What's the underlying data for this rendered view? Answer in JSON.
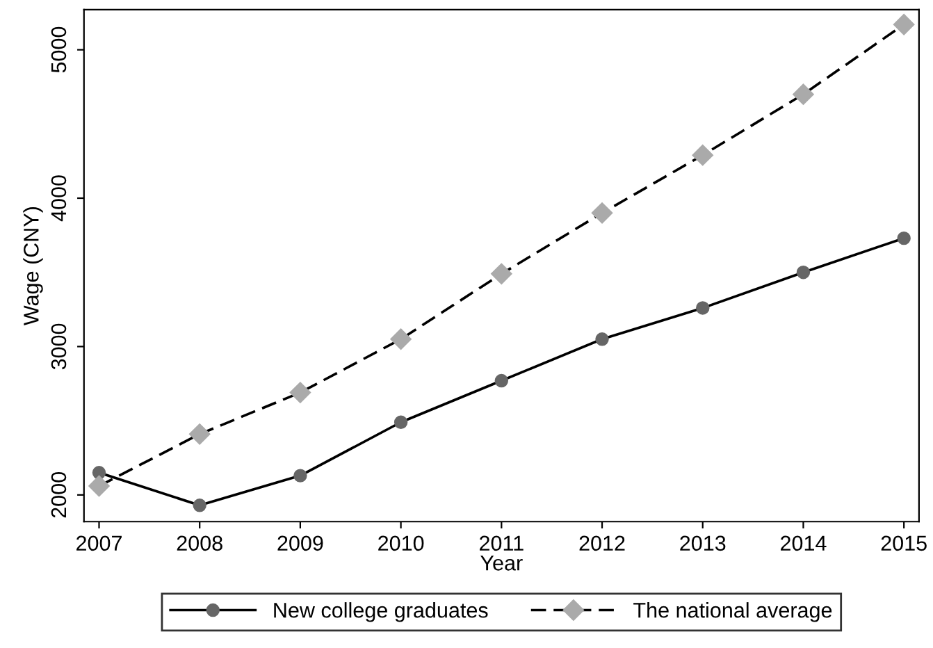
{
  "chart_data": {
    "type": "line",
    "xlabel": "Year",
    "ylabel": "Wage (CNY)",
    "x": [
      2007,
      2008,
      2009,
      2010,
      2011,
      2012,
      2013,
      2014,
      2015
    ],
    "series": [
      {
        "name": "New college graduates",
        "color": "#666666",
        "marker": "circle",
        "line_style": "solid",
        "values": [
          2150,
          1930,
          2130,
          2490,
          2770,
          3050,
          3260,
          3500,
          3730
        ]
      },
      {
        "name": "The national average",
        "color": "#aaaaaa",
        "marker": "diamond",
        "line_style": "dashed",
        "values": [
          2060,
          2410,
          2690,
          3050,
          3490,
          3900,
          4290,
          4700,
          5170
        ]
      }
    ],
    "xlim": [
      2006.85,
      2015.15
    ],
    "ylim": [
      1820,
      5270
    ],
    "xticks": [
      2007,
      2008,
      2009,
      2010,
      2011,
      2012,
      2013,
      2014,
      2015
    ],
    "yticks": [
      2000,
      3000,
      4000,
      5000
    ],
    "grid": false,
    "legend": "bottom"
  }
}
